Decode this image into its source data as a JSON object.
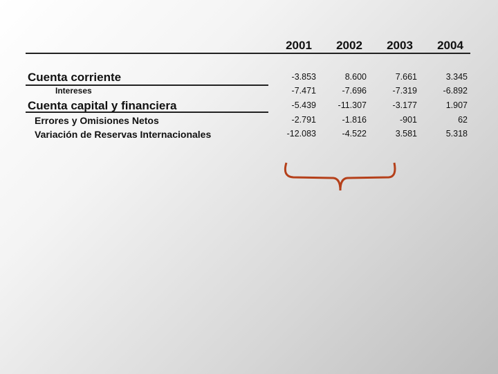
{
  "table": {
    "columns": [
      "2001",
      "2002",
      "2003",
      "2004"
    ],
    "rows": [
      {
        "label": "Cuenta corriente",
        "values": [
          "-3.853",
          "8.600",
          "7.661",
          "3.345"
        ]
      },
      {
        "label": "Intereses",
        "values": [
          "-7.471",
          "-7.696",
          "-7.319",
          "-6.892"
        ]
      },
      {
        "label": "Cuenta capital y financiera",
        "values": [
          "-5.439",
          "-11.307",
          "-3.177",
          "1.907"
        ]
      },
      {
        "label": "Errores y Omisiones Netos",
        "values": [
          "-2.791",
          "-1.816",
          "-901",
          "62"
        ]
      },
      {
        "label": "Variación de Reservas Internacionales",
        "values": [
          "-12.083",
          "-4.522",
          "3.581",
          "5.318"
        ]
      }
    ]
  }
}
